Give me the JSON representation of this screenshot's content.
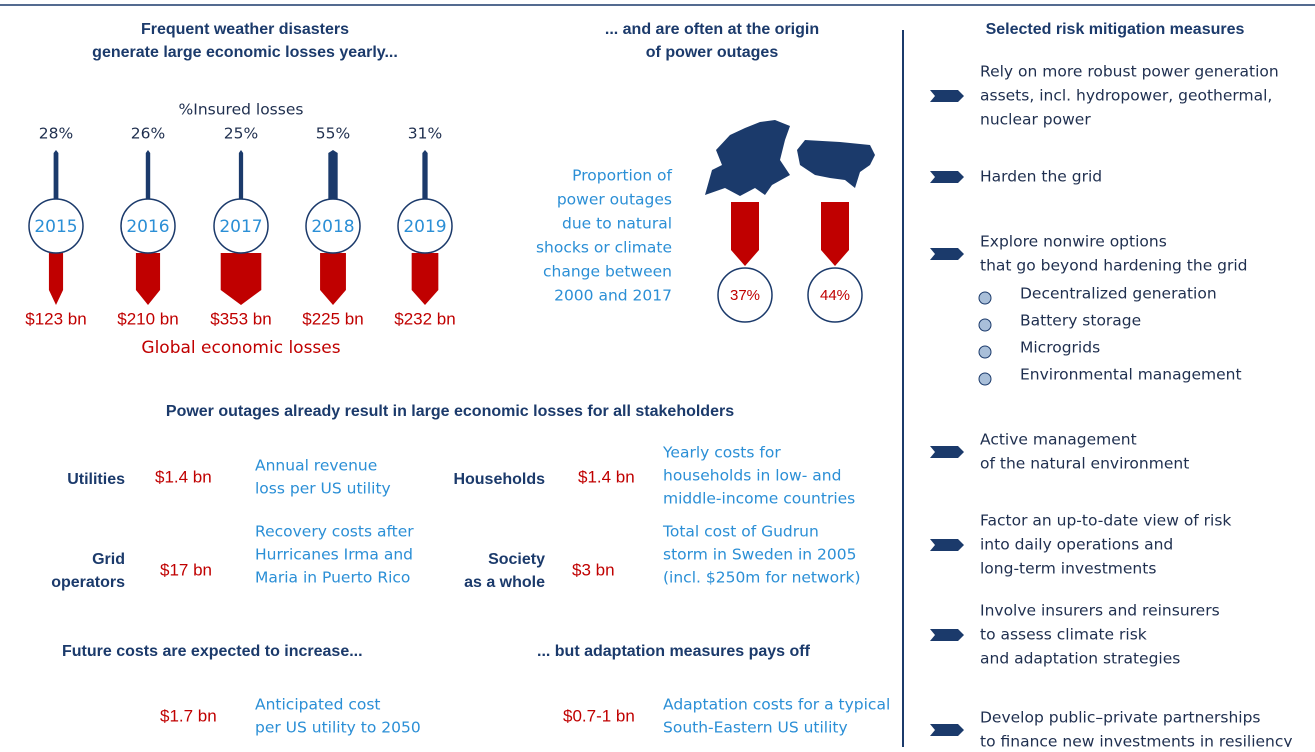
{
  "left": {
    "title": [
      "Frequent weather disasters",
      "generate large economic losses yearly..."
    ],
    "insured_caption": "%Insured losses",
    "years": [
      "2015",
      "2016",
      "2017",
      "2018",
      "2019"
    ],
    "insured_share": [
      28,
      26,
      25,
      55,
      31
    ],
    "insured_labels": [
      "28%",
      "26%",
      "25%",
      "55%",
      "31%"
    ],
    "economic_losses": [
      123,
      210,
      353,
      225,
      232
    ],
    "economic_labels": [
      "$123 bn",
      "$210 bn",
      "$353 bn",
      "$225 bn",
      "$232 bn"
    ],
    "losses_caption": "Global economic losses"
  },
  "middle": {
    "title": [
      "... and are often at the origin",
      "of power outages"
    ],
    "description": [
      "Proportion of",
      "power outages",
      "due to natural",
      "shocks or climate",
      "change between",
      "2000 and 2017"
    ],
    "shares": [
      "37%",
      "44%"
    ]
  },
  "stakeholders": {
    "title": "Power outages already result in large economic losses for all stakeholders",
    "rows": [
      {
        "name": [
          "Utilities"
        ],
        "cost": "$1.4 bn",
        "description": [
          "Annual revenue",
          "loss per US utility"
        ]
      },
      {
        "name": [
          "Households"
        ],
        "cost": "$1.4 bn",
        "description": [
          "Yearly costs for",
          "households in low- and",
          "middle-income countries"
        ]
      },
      {
        "name": [
          "Grid",
          "operators"
        ],
        "cost": "$17 bn",
        "description": [
          "Recovery costs after",
          "Hurricanes Irma and",
          "Maria in Puerto Rico"
        ]
      },
      {
        "name": [
          "Society",
          "as a whole"
        ],
        "cost": "$3 bn",
        "description": [
          "Total cost of Gudrun",
          "storm in Sweden in 2005",
          "(incl. $250m for network)"
        ]
      }
    ]
  },
  "future": {
    "title": "Future costs are expected to increase...",
    "cost": "$1.7 bn",
    "description": [
      "Anticipated cost",
      "per US utility to 2050"
    ]
  },
  "adaptation": {
    "title": "... but adaptation measures pays off",
    "cost": "$0.7-1 bn",
    "description": [
      "Adaptation costs for a typical",
      "South-Eastern US utility"
    ]
  },
  "measures": {
    "title": "Selected risk mitigation measures",
    "items": [
      [
        "Rely on more robust power generation",
        "assets, incl. hydropower, geothermal,",
        "nuclear power"
      ],
      [
        "Harden the grid"
      ],
      [
        "Explore nonwire options",
        "that go beyond hardening the grid"
      ],
      [
        "Active management",
        "of the natural environment"
      ],
      [
        "Factor an up-to-date view of risk",
        "into daily operations and",
        "long-term investments"
      ],
      [
        "Involve insurers and reinsurers",
        "to assess climate risk",
        "and adaptation strategies"
      ],
      [
        "Develop public–private partnerships",
        "to finance new investments in resiliency"
      ]
    ],
    "options": [
      "Decentralized generation",
      "Battery storage",
      "Microgrids",
      "Environmental management"
    ]
  }
}
